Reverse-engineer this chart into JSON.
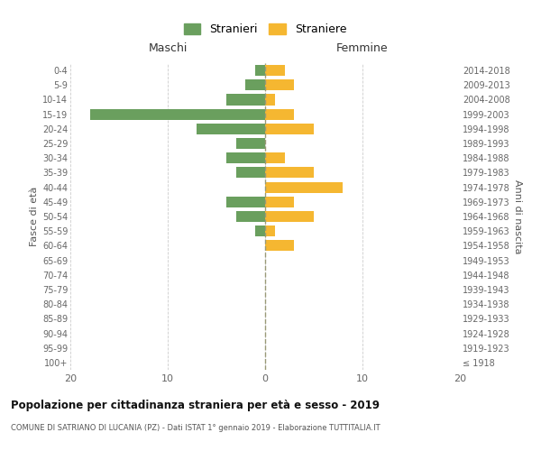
{
  "age_groups": [
    "100+",
    "95-99",
    "90-94",
    "85-89",
    "80-84",
    "75-79",
    "70-74",
    "65-69",
    "60-64",
    "55-59",
    "50-54",
    "45-49",
    "40-44",
    "35-39",
    "30-34",
    "25-29",
    "20-24",
    "15-19",
    "10-14",
    "5-9",
    "0-4"
  ],
  "birth_years": [
    "≤ 1918",
    "1919-1923",
    "1924-1928",
    "1929-1933",
    "1934-1938",
    "1939-1943",
    "1944-1948",
    "1949-1953",
    "1954-1958",
    "1959-1963",
    "1964-1968",
    "1969-1973",
    "1974-1978",
    "1979-1983",
    "1984-1988",
    "1989-1993",
    "1994-1998",
    "1999-2003",
    "2004-2008",
    "2009-2013",
    "2014-2018"
  ],
  "males": [
    0,
    0,
    0,
    0,
    0,
    0,
    0,
    0,
    0,
    1,
    3,
    4,
    0,
    3,
    4,
    3,
    7,
    18,
    4,
    2,
    1
  ],
  "females": [
    0,
    0,
    0,
    0,
    0,
    0,
    0,
    0,
    3,
    1,
    5,
    3,
    8,
    5,
    2,
    0,
    5,
    3,
    1,
    3,
    2
  ],
  "color_males": "#6a9f5e",
  "color_females": "#f5b731",
  "xlim": 20,
  "title": "Popolazione per cittadinanza straniera per età e sesso - 2019",
  "subtitle": "COMUNE DI SATRIANO DI LUCANIA (PZ) - Dati ISTAT 1° gennaio 2019 - Elaborazione TUTTITALIA.IT",
  "legend_males": "Stranieri",
  "legend_females": "Straniere",
  "ylabel_left": "Fasce di età",
  "ylabel_right": "Anni di nascita",
  "header_left": "Maschi",
  "header_right": "Femmine",
  "bg_color": "#ffffff",
  "grid_color": "#cccccc",
  "bar_height": 0.75
}
